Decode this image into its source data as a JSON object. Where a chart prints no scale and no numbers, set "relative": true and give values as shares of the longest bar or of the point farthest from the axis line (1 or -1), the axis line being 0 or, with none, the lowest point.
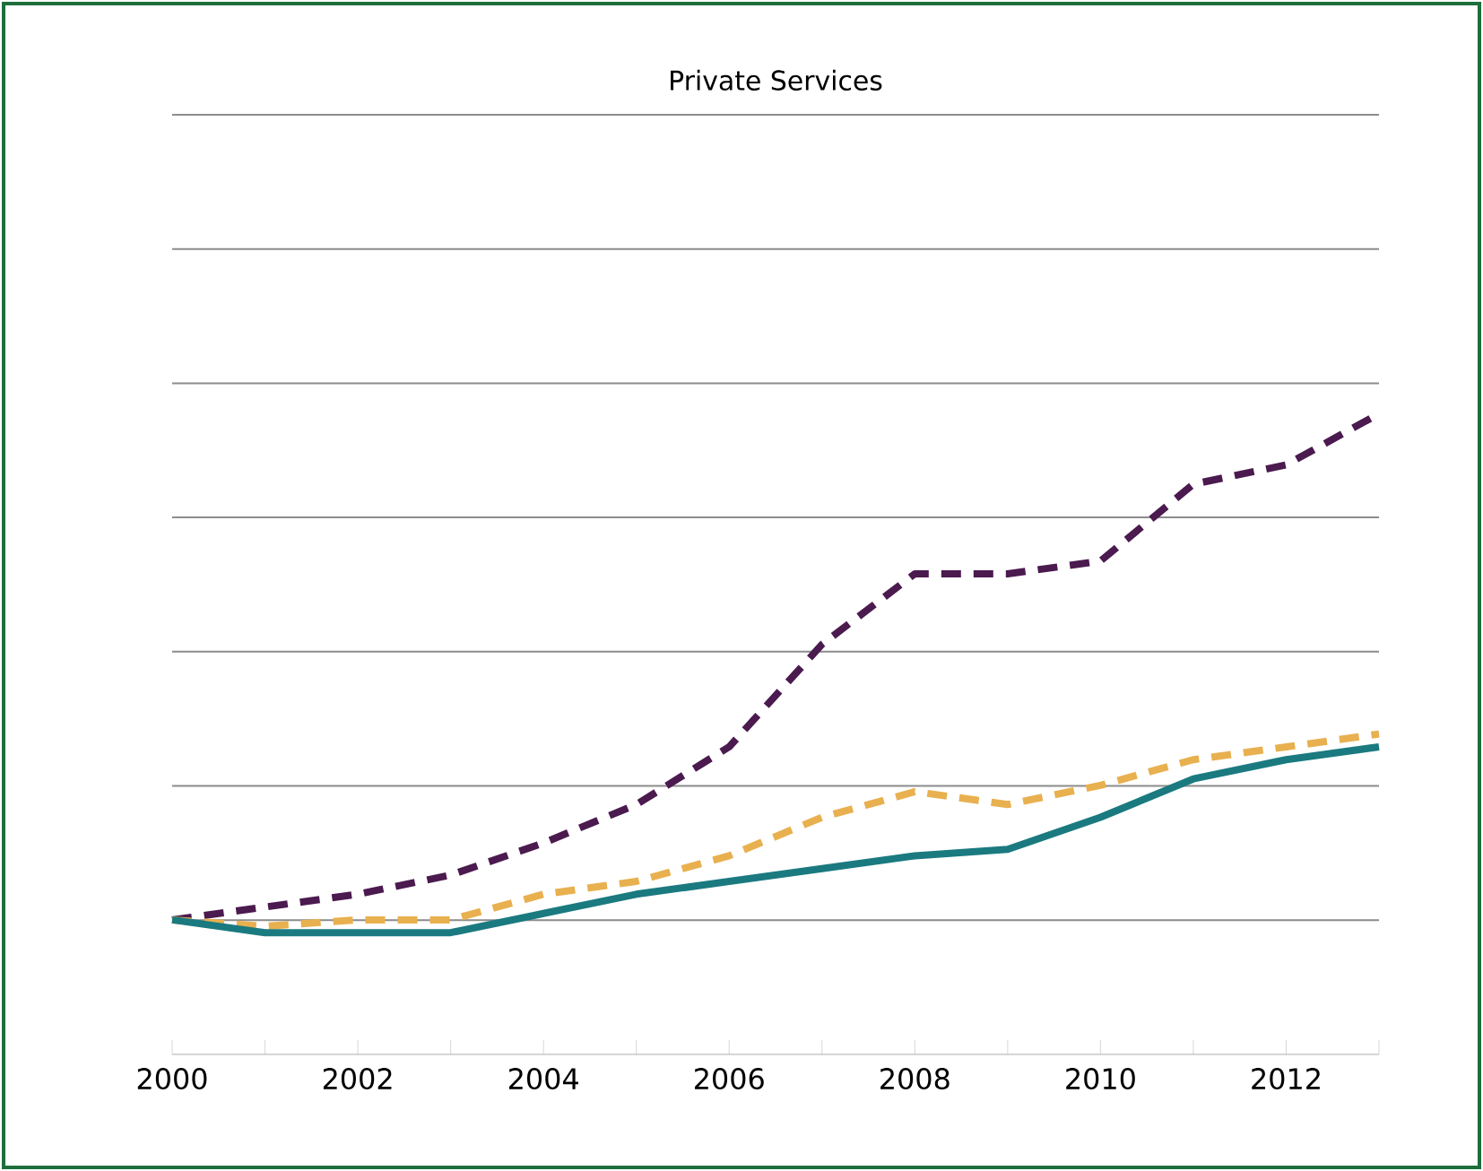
{
  "chart_data": {
    "type": "line",
    "title": "Private Services",
    "relative": true,
    "x": [
      2000,
      2001,
      2002,
      2003,
      2004,
      2005,
      2006,
      2007,
      2008,
      2009,
      2010,
      2011,
      2012,
      2013
    ],
    "xlim": [
      2000,
      2013
    ],
    "xticks": [
      2000,
      {
        "value": 2001,
        "label": null
      },
      2002,
      {
        "value": 2003,
        "label": null
      },
      2004,
      {
        "value": 2005,
        "label": null
      },
      2006,
      {
        "value": 2007,
        "label": null
      },
      2008,
      {
        "value": 2009,
        "label": null
      },
      2010,
      {
        "value": 2011,
        "label": null
      },
      2012,
      {
        "value": 2013,
        "label": null
      }
    ],
    "grid": "y",
    "marker": "none",
    "series": [
      {
        "color": "#4b1a4f",
        "line_style": "dashed",
        "values": [
          0.21,
          0.23,
          0.25,
          0.28,
          0.33,
          0.39,
          0.48,
          0.64,
          0.75,
          0.75,
          0.77,
          0.89,
          0.92,
          1.0
        ]
      },
      {
        "color": "#e8b04f",
        "line_style": "dashed",
        "values": [
          0.21,
          0.2,
          0.21,
          0.21,
          0.25,
          0.27,
          0.31,
          0.37,
          0.41,
          0.39,
          0.42,
          0.46,
          0.48,
          0.5
        ]
      },
      {
        "color": "#1a7a80",
        "line_style": "solid",
        "values": [
          0.21,
          0.19,
          0.19,
          0.19,
          0.22,
          0.25,
          0.27,
          0.29,
          0.31,
          0.32,
          0.37,
          0.43,
          0.46,
          0.48
        ]
      }
    ]
  }
}
